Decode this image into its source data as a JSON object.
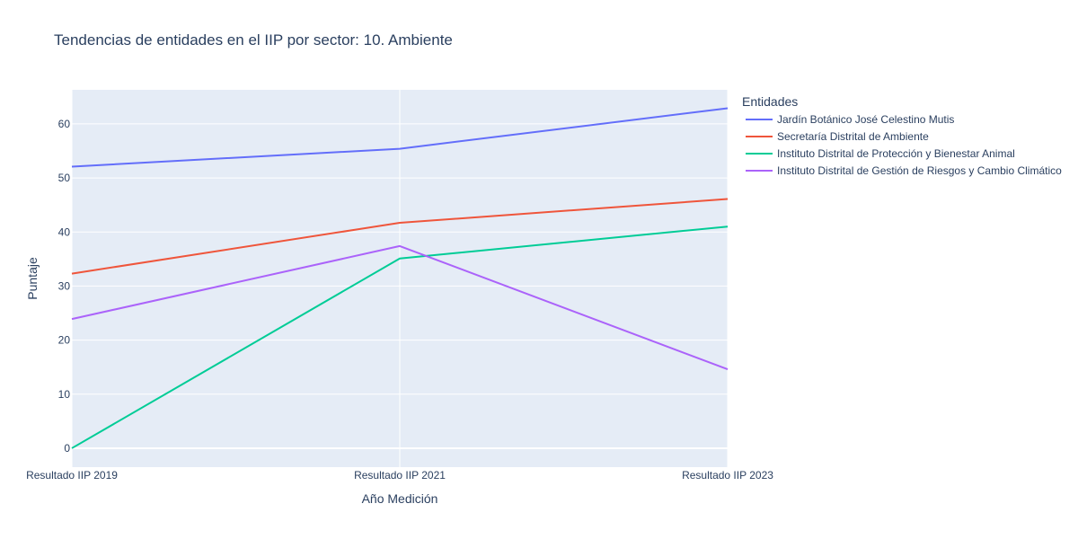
{
  "chart_data": {
    "type": "line",
    "title": "Tendencias de entidades en el IIP por sector: 10. Ambiente",
    "xlabel": "Año Medición",
    "ylabel": "Puntaje",
    "categories": [
      "Resultado IIP 2019",
      "Resultado IIP 2021",
      "Resultado IIP 2023"
    ],
    "ylim": [
      -3.5,
      66.3
    ],
    "yticks": [
      0,
      10,
      20,
      30,
      40,
      50,
      60
    ],
    "grid": true,
    "legend": {
      "title": "Entidades",
      "placement": "right"
    },
    "colors": {
      "plot_background": "#e5ecf6",
      "grid": "#ffffff",
      "text": "#2a3f5f"
    },
    "series": [
      {
        "name": "Jardín Botánico José Celestino Mutis",
        "color": "#636efa",
        "values": [
          52.1,
          55.4,
          62.9
        ]
      },
      {
        "name": "Secretaría Distrital de Ambiente",
        "color": "#ef553b",
        "values": [
          32.3,
          41.7,
          46.1
        ]
      },
      {
        "name": "Instituto Distrital de Protección y Bienestar Animal",
        "color": "#00cc96",
        "values": [
          0.0,
          35.1,
          41.0
        ]
      },
      {
        "name": "Instituto Distrital de Gestión de Riesgos y Cambio Climático",
        "color": "#ab63fa",
        "values": [
          23.9,
          37.4,
          14.6
        ]
      }
    ]
  }
}
